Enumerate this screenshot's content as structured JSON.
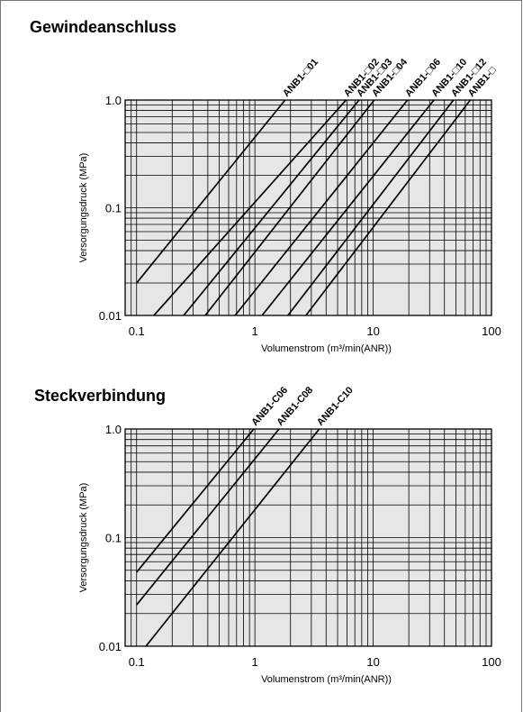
{
  "colors": {
    "plot_bg": "#e6e6e6",
    "grid": "#000000",
    "line": "#000000",
    "frame": "#777777"
  },
  "chart_data": [
    {
      "type": "line",
      "title": "Gewindeanschluss",
      "xlabel": "Volumenstrom (m³/min(ANR))",
      "ylabel": "Versorgungsdruck (MPa)",
      "xscale": "log",
      "yscale": "log",
      "xlim": [
        0.08,
        100
      ],
      "ylim": [
        0.01,
        1.0
      ],
      "xticks": [
        "0.1",
        "1",
        "10",
        "100"
      ],
      "yticks": [
        "0.01",
        "0.1",
        "1.0"
      ],
      "grid": true,
      "series": [
        {
          "name": "ANB1-□01",
          "points": [
            [
              0.1,
              0.02
            ],
            [
              1.8,
              1.0
            ]
          ]
        },
        {
          "name": "ANB1-□02",
          "points": [
            [
              0.14,
              0.01
            ],
            [
              5.9,
              1.0
            ]
          ]
        },
        {
          "name": "ANB1-□03",
          "points": [
            [
              0.25,
              0.01
            ],
            [
              7.6,
              1.0
            ]
          ]
        },
        {
          "name": "ANB1-□04",
          "points": [
            [
              0.38,
              0.01
            ],
            [
              10.2,
              1.0
            ]
          ]
        },
        {
          "name": "ANB1-□06",
          "points": [
            [
              0.68,
              0.01
            ],
            [
              19.5,
              1.0
            ]
          ]
        },
        {
          "name": "ANB1-□10",
          "points": [
            [
              1.15,
              0.01
            ],
            [
              32.6,
              1.0
            ]
          ]
        },
        {
          "name": "ANB1-□12",
          "points": [
            [
              1.9,
              0.01
            ],
            [
              47.7,
              1.0
            ]
          ]
        },
        {
          "name": "ANB1-□",
          "points": [
            [
              2.7,
              0.01
            ],
            [
              66.2,
              1.0
            ]
          ]
        }
      ]
    },
    {
      "type": "line",
      "title": "Steckverbindung",
      "xlabel": "Volumenstrom (m³/min(ANR))",
      "ylabel": "Versorgungsdruck (MPa)",
      "xscale": "log",
      "yscale": "log",
      "xlim": [
        0.08,
        100
      ],
      "ylim": [
        0.01,
        1.0
      ],
      "xticks": [
        "0.1",
        "1",
        "10",
        "100"
      ],
      "yticks": [
        "0.01",
        "0.1",
        "1.0"
      ],
      "grid": true,
      "series": [
        {
          "name": "ANB1-C06",
          "points": [
            [
              0.1,
              0.048
            ],
            [
              0.98,
              1.0
            ]
          ]
        },
        {
          "name": "ANB1-C08",
          "points": [
            [
              0.1,
              0.024
            ],
            [
              1.6,
              1.0
            ]
          ]
        },
        {
          "name": "ANB1-C10",
          "points": [
            [
              0.12,
              0.01
            ],
            [
              3.5,
              1.0
            ]
          ]
        }
      ]
    }
  ]
}
